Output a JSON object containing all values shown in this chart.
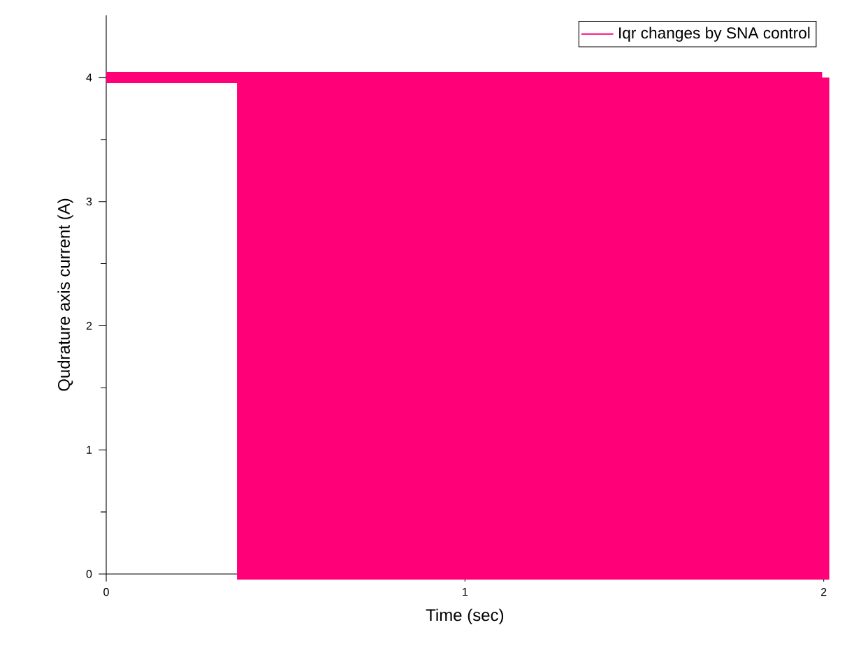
{
  "chart_data": {
    "type": "step",
    "xlabel": "Time (sec)",
    "ylabel": "Qudrature axis current (A)",
    "xlim": [
      0,
      2
    ],
    "ylim": [
      0,
      4.5
    ],
    "xticks": [
      0,
      1,
      2
    ],
    "yticks": [
      0,
      1,
      2,
      3,
      4
    ],
    "legend": "top right",
    "series": [
      {
        "name": "Iqr changes by SNA control",
        "color": "#ff0078",
        "x": [
          0,
          0.38,
          0.4,
          0.42,
          0.44,
          0.46,
          0.48,
          0.5,
          0.52,
          0.54,
          0.56,
          0.58,
          0.6,
          0.62,
          0.64,
          0.66,
          0.68,
          0.7,
          0.72,
          0.74,
          0.76,
          0.78,
          0.8,
          0.82,
          0.84,
          0.86,
          0.88,
          0.9,
          0.92,
          0.94,
          0.96,
          0.98,
          1.0,
          1.02,
          1.04,
          1.06,
          1.08,
          1.1,
          1.12,
          1.14,
          1.16,
          1.18,
          1.2,
          1.22,
          1.24,
          1.26,
          1.28,
          1.3,
          1.32,
          1.34,
          1.36,
          1.38,
          1.4,
          1.42,
          1.44,
          1.46,
          1.48,
          1.5,
          1.52,
          1.54,
          1.56,
          1.58,
          1.6,
          1.62,
          1.64,
          1.66,
          1.68,
          1.7,
          1.72,
          1.74,
          1.76,
          1.78,
          1.8,
          1.82,
          1.84,
          1.86,
          1.88,
          1.9,
          1.92,
          1.94,
          1.96,
          1.98,
          2.0
        ],
        "values": [
          4,
          0,
          4,
          0,
          4,
          0,
          4,
          0,
          4,
          0,
          4,
          0,
          4,
          0,
          4,
          0,
          4,
          0,
          4,
          0,
          4,
          0,
          4,
          0,
          4,
          0,
          4,
          0,
          4,
          0,
          4,
          0,
          4,
          0,
          4,
          0,
          4,
          0,
          4,
          0,
          4,
          0,
          4,
          0,
          4,
          0,
          4,
          0,
          4,
          0,
          4,
          0,
          4,
          0,
          4,
          0,
          4,
          0,
          4,
          0,
          4,
          0,
          4,
          0,
          4,
          0,
          4,
          0,
          4,
          0,
          4,
          0,
          4,
          0,
          4,
          0,
          4,
          0,
          4,
          0,
          4,
          0,
          4
        ]
      }
    ]
  }
}
